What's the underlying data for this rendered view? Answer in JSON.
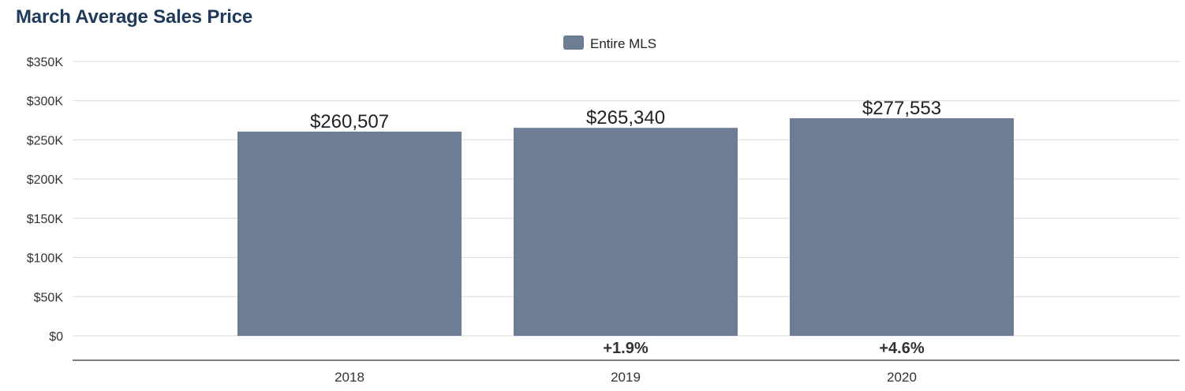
{
  "chart_data": {
    "type": "bar",
    "title": "March Average Sales Price",
    "categories": [
      "2018",
      "2019",
      "2020"
    ],
    "series": [
      {
        "name": "Entire MLS",
        "values": [
          260507,
          265340,
          277553
        ]
      }
    ],
    "data_labels": [
      "$260,507",
      "$265,340",
      "$277,553"
    ],
    "changes": [
      "",
      "+1.9%",
      "+4.6%"
    ],
    "yticks": [
      0,
      50000,
      100000,
      150000,
      200000,
      250000,
      300000,
      350000
    ],
    "ytick_labels": [
      "$0",
      "$50K",
      "$100K",
      "$150K",
      "$200K",
      "$250K",
      "$300K",
      "$350K"
    ],
    "ylim": [
      0,
      350000
    ],
    "grid": true,
    "legend_position": "top-center",
    "bar_color": "#6d7d93"
  }
}
